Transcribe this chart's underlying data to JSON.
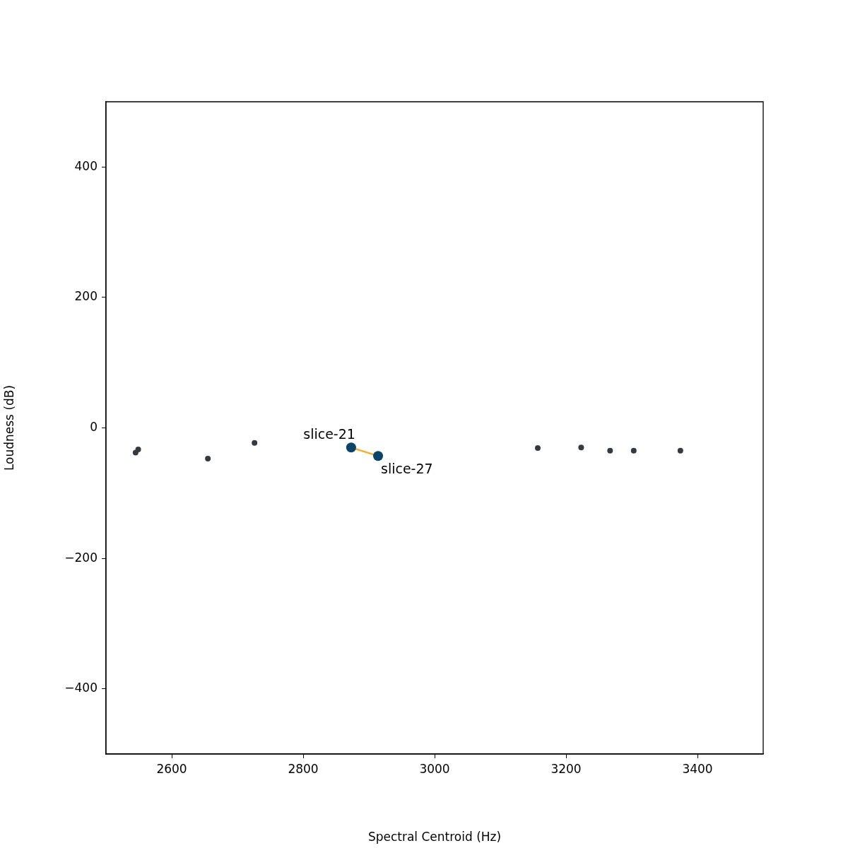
{
  "chart_data": {
    "type": "scatter",
    "xlabel": "Spectral Centroid (Hz)",
    "ylabel": "Loudness (dB)",
    "xlim": [
      2500,
      3500
    ],
    "xticks": [
      2600,
      2800,
      3000,
      3200,
      3400
    ],
    "ylim": [
      -500,
      500
    ],
    "yticks": [
      {
        "value": -400,
        "label": "−400"
      },
      {
        "value": -200,
        "label": "−200"
      },
      0,
      200,
      400
    ],
    "marker": "circle",
    "grid": false,
    "legend": false,
    "series": [
      {
        "type": "scatter",
        "color": "#343a40",
        "x": [
          2545,
          2549,
          2655,
          2726,
          3157,
          3223,
          3267,
          3303,
          3374
        ],
        "values": [
          -38,
          -33,
          -47,
          -23,
          -31,
          -30,
          -35,
          -35,
          -35
        ]
      },
      {
        "type": "line",
        "color": "#f2b134",
        "marker": "none",
        "x": [
          2873,
          2914
        ],
        "values": [
          -30,
          -43
        ]
      },
      {
        "type": "scatter",
        "color": "#0b4468",
        "x": [
          2873,
          2914
        ],
        "values": [
          -30,
          -43
        ]
      }
    ],
    "annotations": [
      {
        "text": "slice-21",
        "x": 2873,
        "y": -30
      },
      {
        "text": "slice-27",
        "x": 2914,
        "y": -43
      }
    ]
  }
}
